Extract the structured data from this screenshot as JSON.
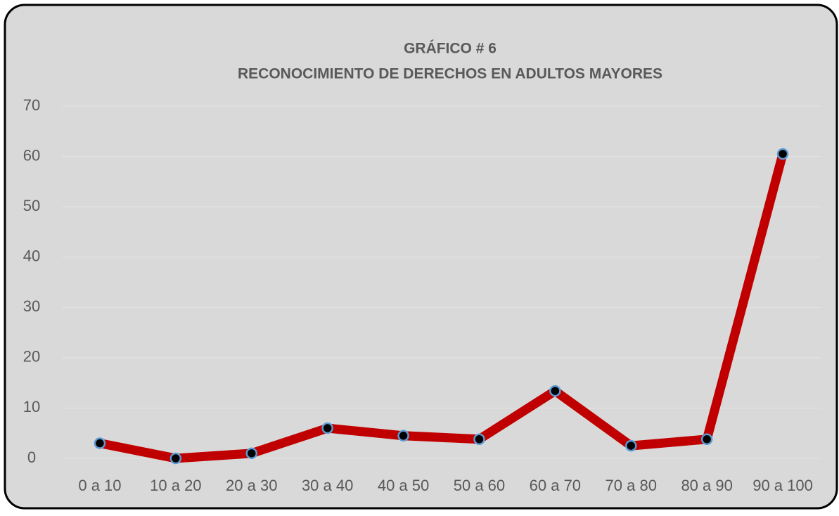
{
  "chart_data": {
    "type": "line",
    "title": "GRÁFICO # 6",
    "subtitle": "RECONOCIMIENTO DE DERECHOS EN ADULTOS MAYORES",
    "categories": [
      "0 a 10",
      "10 a 20",
      "20 a 30",
      "30 a 40",
      "40 a 50",
      "50 a 60",
      "60 a 70",
      "70 a 80",
      "80 a 90",
      "90 a 100"
    ],
    "values": [
      3,
      0,
      1,
      6,
      4.5,
      3.8,
      13.4,
      2.5,
      3.8,
      60.5
    ],
    "color": "#c00000",
    "marker_color": "#000000",
    "marker_edge_color": "#5b9bd5",
    "ylim": [
      0,
      70
    ],
    "yticks": [
      0,
      10,
      20,
      30,
      40,
      50,
      60,
      70
    ],
    "grid": true
  }
}
